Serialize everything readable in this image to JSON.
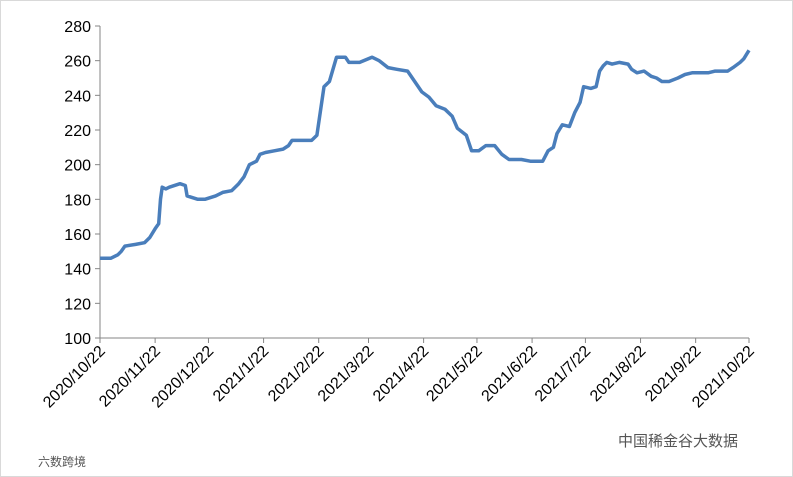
{
  "chart_data": {
    "type": "line",
    "x": [
      "2020/10/22",
      "2020/10/28",
      "2020/11/1",
      "2020/11/3",
      "2020/11/5",
      "2020/11/11",
      "2020/11/16",
      "2020/11/19",
      "2020/11/22",
      "2020/11/24",
      "2020/11/25",
      "2020/11/26",
      "2020/11/28",
      "2020/11/30",
      "2020/12/6",
      "2020/12/9",
      "2020/12/10",
      "2020/12/16",
      "2020/12/20",
      "2020/12/26",
      "2020/12/30",
      "2021/1/4",
      "2021/1/8",
      "2021/1/11",
      "2021/1/14",
      "2021/1/18",
      "2021/1/20",
      "2021/1/23",
      "2021/1/28",
      "2021/2/2",
      "2021/2/5",
      "2021/2/7",
      "2021/2/11",
      "2021/2/18",
      "2021/2/21",
      "2021/2/25",
      "2021/2/28",
      "2021/3/4",
      "2021/3/9",
      "2021/3/11",
      "2021/3/17",
      "2021/3/24",
      "2021/3/28",
      "2021/4/2",
      "2021/4/7",
      "2021/4/13",
      "2021/4/17",
      "2021/4/21",
      "2021/4/25",
      "2021/4/29",
      "2021/5/4",
      "2021/5/8",
      "2021/5/11",
      "2021/5/16",
      "2021/5/19",
      "2021/5/23",
      "2021/5/27",
      "2021/6/1",
      "2021/6/5",
      "2021/6/9",
      "2021/6/16",
      "2021/6/21",
      "2021/6/28",
      "2021/7/1",
      "2021/7/4",
      "2021/7/6",
      "2021/7/9",
      "2021/7/13",
      "2021/7/16",
      "2021/7/19",
      "2021/7/21",
      "2021/7/25",
      "2021/7/28",
      "2021/7/30",
      "2021/8/1",
      "2021/8/3",
      "2021/8/6",
      "2021/8/10",
      "2021/8/15",
      "2021/8/17",
      "2021/8/20",
      "2021/8/24",
      "2021/8/28",
      "2021/8/31",
      "2021/9/3",
      "2021/9/7",
      "2021/9/12",
      "2021/9/16",
      "2021/9/20",
      "2021/9/24",
      "2021/9/29",
      "2021/10/3",
      "2021/10/10",
      "2021/10/13",
      "2021/10/17",
      "2021/10/19",
      "2021/10/22"
    ],
    "series": [
      {
        "color": "#4a7ebb",
        "values": [
          146,
          146,
          148,
          150,
          153,
          154,
          155,
          158,
          163,
          166,
          180,
          187,
          186,
          187,
          189,
          188,
          182,
          180,
          180,
          182,
          184,
          185,
          189,
          193,
          200,
          202,
          206,
          207,
          208,
          209,
          211,
          214,
          214,
          214,
          217,
          245,
          248,
          262,
          262,
          259,
          259,
          262,
          260,
          256,
          255,
          254,
          248,
          242,
          239,
          234,
          232,
          228,
          221,
          217,
          208,
          208,
          211,
          211,
          206,
          203,
          203,
          202,
          202,
          208,
          210,
          218,
          223,
          222,
          230,
          236,
          245,
          244,
          245,
          254,
          257,
          259,
          258,
          259,
          258,
          255,
          253,
          254,
          251,
          250,
          248,
          248,
          250,
          252,
          253,
          253,
          253,
          254,
          254,
          256,
          259,
          261,
          266
        ]
      }
    ],
    "xlim": [
      "2020/10/22",
      "2021/10/22"
    ],
    "xticks": [
      "2020/10/22",
      "2020/11/22",
      "2020/12/22",
      "2021/1/22",
      "2021/2/22",
      "2021/3/22",
      "2021/4/22",
      "2021/5/22",
      "2021/6/22",
      "2021/7/22",
      "2021/8/22",
      "2021/9/22",
      "2021/10/22"
    ],
    "ylim": [
      100,
      280
    ],
    "yticks": [
      100,
      120,
      140,
      160,
      180,
      200,
      220,
      240,
      260,
      280
    ],
    "grid": false,
    "watermark": "中国稀金谷大数据",
    "watermark2": "六数跨境"
  }
}
